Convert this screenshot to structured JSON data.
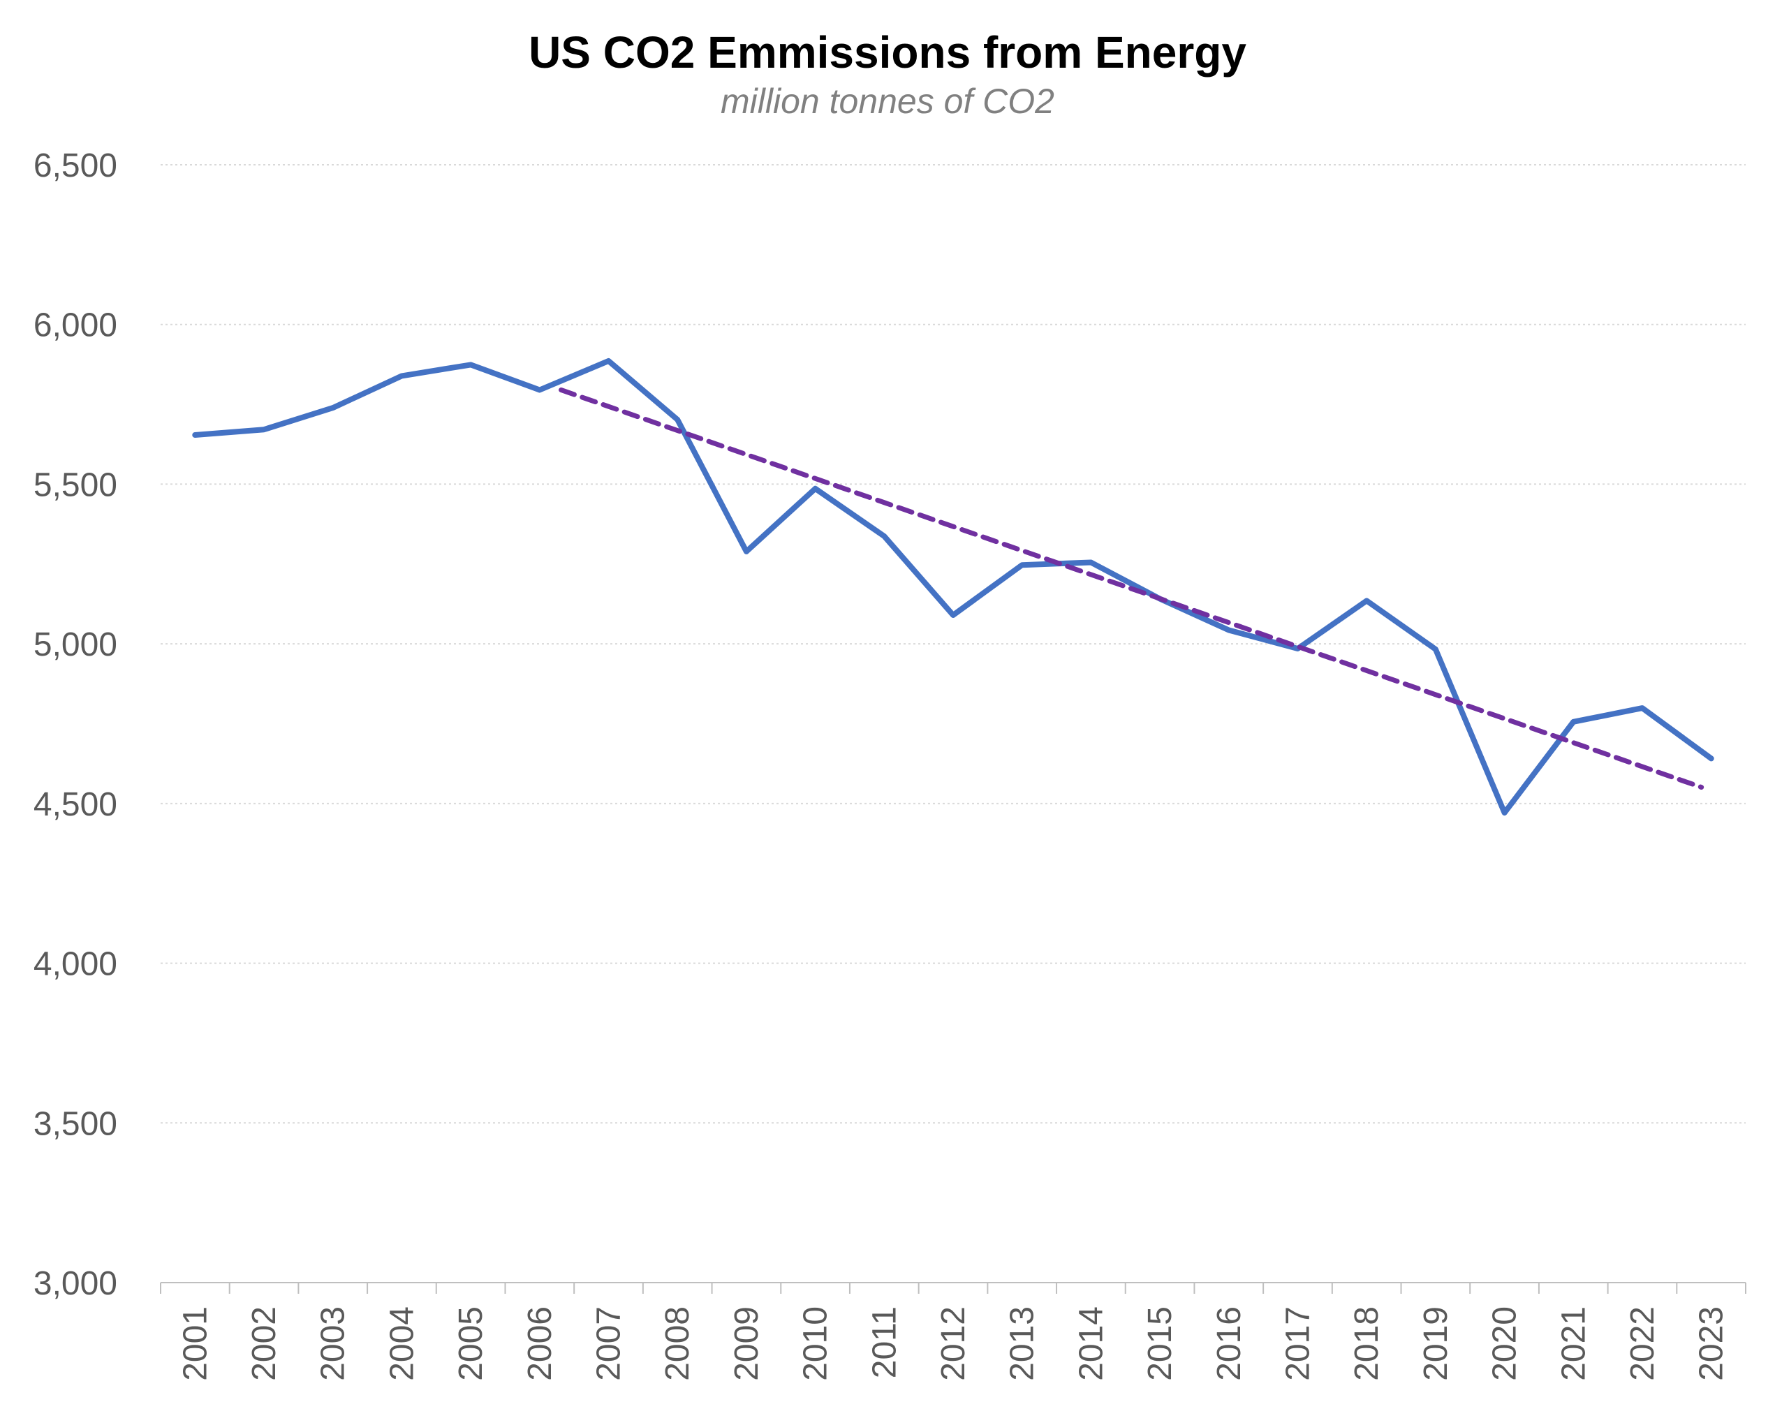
{
  "chart_data": {
    "type": "line",
    "title": "US CO2 Emmissions from Energy",
    "subtitle": "million tonnes of CO2",
    "xlabel": "",
    "ylabel": "",
    "categories": [
      "2001",
      "2002",
      "2003",
      "2004",
      "2005",
      "2006",
      "2007",
      "2008",
      "2009",
      "2010",
      "2011",
      "2012",
      "2013",
      "2014",
      "2015",
      "2016",
      "2017",
      "2018",
      "2019",
      "2020",
      "2021",
      "2022",
      "2023"
    ],
    "series": [
      {
        "values": [
          5654,
          5671,
          5739,
          5839,
          5874,
          5795,
          5886,
          5702,
          5289,
          5486,
          5337,
          5090,
          5247,
          5255,
          5141,
          5043,
          4985,
          5135,
          4983,
          4471,
          4756,
          4799,
          4641
        ],
        "color": "#4472C4",
        "style": "solid"
      },
      {
        "trendline": true,
        "x_start": "2007",
        "x_end": "2023",
        "values_at_ends": [
          5795,
          4551
        ],
        "color": "#7030A0",
        "style": "dashed"
      }
    ],
    "ylim": [
      3000,
      6500
    ],
    "yticks": [
      "3,000",
      "3,500",
      "4,000",
      "4,500",
      "5,000",
      "5,500",
      "6,000",
      "6,500"
    ],
    "ytick_values": [
      3000,
      3500,
      4000,
      4500,
      5000,
      5500,
      6000,
      6500
    ],
    "grid": "horizontal-dotted",
    "legend": "none",
    "colors": {
      "gridline": "#D9D9D9",
      "axis": "#BFBFBF",
      "tick_text": "#595959"
    }
  }
}
